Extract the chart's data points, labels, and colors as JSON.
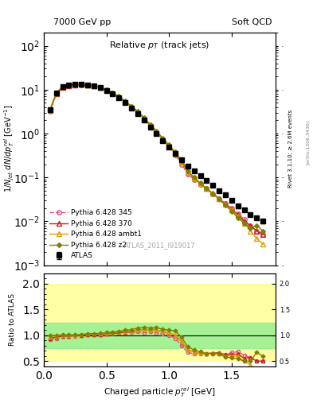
{
  "title_left": "7000 GeV pp",
  "title_right": "Soft QCD",
  "plot_title": "Relative $p_T$ (track jets)",
  "xlabel": "Charged particle $p_{T}^{rel}$ [GeV]",
  "ylabel_main": "$1/N_{jet}$ $dN/dp_T^{rel}$ [GeV$^{-1}$]",
  "ylabel_ratio": "Ratio to ATLAS",
  "right_label": "Rivet 3.1.10; ≥ 2.6M events",
  "watermark": "ATLAS_2011_I919017",
  "ref_label": "[arXiv:1306.3436]",
  "atlas_x": [
    0.05,
    0.1,
    0.15,
    0.2,
    0.25,
    0.3,
    0.35,
    0.4,
    0.45,
    0.5,
    0.55,
    0.6,
    0.65,
    0.7,
    0.75,
    0.8,
    0.85,
    0.9,
    0.95,
    1.0,
    1.05,
    1.1,
    1.15,
    1.2,
    1.25,
    1.3,
    1.35,
    1.4,
    1.45,
    1.5,
    1.55,
    1.6,
    1.65,
    1.7,
    1.75
  ],
  "atlas_y": [
    3.5,
    8.5,
    11.5,
    12.5,
    13.0,
    13.0,
    12.5,
    12.0,
    11.0,
    9.5,
    8.0,
    6.5,
    5.0,
    3.8,
    2.8,
    2.0,
    1.4,
    1.0,
    0.7,
    0.5,
    0.35,
    0.25,
    0.18,
    0.14,
    0.11,
    0.085,
    0.065,
    0.05,
    0.04,
    0.03,
    0.022,
    0.018,
    0.014,
    0.012,
    0.01
  ],
  "atlas_yerr": [
    0.3,
    0.5,
    0.6,
    0.6,
    0.6,
    0.6,
    0.6,
    0.5,
    0.5,
    0.4,
    0.3,
    0.25,
    0.2,
    0.15,
    0.12,
    0.09,
    0.06,
    0.05,
    0.035,
    0.025,
    0.018,
    0.013,
    0.01,
    0.008,
    0.006,
    0.005,
    0.004,
    0.003,
    0.003,
    0.002,
    0.002,
    0.0015,
    0.0012,
    0.001,
    0.001
  ],
  "p345_x": [
    0.05,
    0.1,
    0.15,
    0.2,
    0.25,
    0.3,
    0.35,
    0.4,
    0.45,
    0.5,
    0.55,
    0.6,
    0.65,
    0.7,
    0.75,
    0.8,
    0.85,
    0.9,
    0.95,
    1.0,
    1.05,
    1.1,
    1.15,
    1.2,
    1.25,
    1.3,
    1.35,
    1.4,
    1.45,
    1.5,
    1.55,
    1.6,
    1.65,
    1.7,
    1.75
  ],
  "p345_y": [
    3.2,
    8.0,
    11.2,
    12.2,
    12.8,
    12.9,
    12.6,
    12.1,
    11.2,
    9.8,
    8.3,
    6.8,
    5.3,
    4.0,
    3.0,
    2.1,
    1.5,
    1.05,
    0.72,
    0.5,
    0.33,
    0.2,
    0.12,
    0.09,
    0.07,
    0.055,
    0.042,
    0.033,
    0.025,
    0.02,
    0.015,
    0.011,
    0.008,
    0.006,
    0.005
  ],
  "p370_x": [
    0.05,
    0.1,
    0.15,
    0.2,
    0.25,
    0.3,
    0.35,
    0.4,
    0.45,
    0.5,
    0.55,
    0.6,
    0.65,
    0.7,
    0.75,
    0.8,
    0.85,
    0.9,
    0.95,
    1.0,
    1.05,
    1.1,
    1.15,
    1.2,
    1.25,
    1.3,
    1.35,
    1.4,
    1.45,
    1.5,
    1.55,
    1.6,
    1.65,
    1.7,
    1.75
  ],
  "p370_y": [
    3.3,
    8.2,
    11.3,
    12.3,
    12.9,
    13.0,
    12.7,
    12.2,
    11.2,
    9.8,
    8.3,
    6.8,
    5.3,
    4.1,
    3.1,
    2.2,
    1.55,
    1.1,
    0.75,
    0.52,
    0.35,
    0.22,
    0.13,
    0.095,
    0.072,
    0.055,
    0.043,
    0.033,
    0.025,
    0.019,
    0.014,
    0.01,
    0.008,
    0.006,
    0.005
  ],
  "pambt1_x": [
    0.05,
    0.1,
    0.15,
    0.2,
    0.25,
    0.3,
    0.35,
    0.4,
    0.45,
    0.5,
    0.55,
    0.6,
    0.65,
    0.7,
    0.75,
    0.8,
    0.85,
    0.9,
    0.95,
    1.0,
    1.05,
    1.1,
    1.15,
    1.2,
    1.25,
    1.3,
    1.35,
    1.4,
    1.45,
    1.5,
    1.55,
    1.6,
    1.65,
    1.7,
    1.75
  ],
  "pambt1_y": [
    3.4,
    8.4,
    11.5,
    12.5,
    13.0,
    13.1,
    12.8,
    12.3,
    11.3,
    9.9,
    8.4,
    6.9,
    5.4,
    4.1,
    3.1,
    2.2,
    1.55,
    1.1,
    0.75,
    0.52,
    0.35,
    0.22,
    0.13,
    0.095,
    0.072,
    0.055,
    0.043,
    0.032,
    0.024,
    0.018,
    0.013,
    0.009,
    0.006,
    0.004,
    0.003
  ],
  "pz2_x": [
    0.05,
    0.1,
    0.15,
    0.2,
    0.25,
    0.3,
    0.35,
    0.4,
    0.45,
    0.5,
    0.55,
    0.6,
    0.65,
    0.7,
    0.75,
    0.8,
    0.85,
    0.9,
    0.95,
    1.0,
    1.05,
    1.1,
    1.15,
    1.2,
    1.25,
    1.3,
    1.35,
    1.4,
    1.45,
    1.5,
    1.55,
    1.6,
    1.65,
    1.7,
    1.75
  ],
  "pz2_y": [
    3.5,
    8.5,
    11.6,
    12.6,
    13.1,
    13.2,
    12.9,
    12.4,
    11.4,
    10.0,
    8.5,
    7.0,
    5.5,
    4.2,
    3.2,
    2.3,
    1.6,
    1.15,
    0.78,
    0.55,
    0.38,
    0.24,
    0.14,
    0.1,
    0.075,
    0.055,
    0.042,
    0.032,
    0.023,
    0.017,
    0.012,
    0.009,
    0.007,
    0.008,
    0.006
  ],
  "ylim_main": [
    0.001,
    200
  ],
  "ylim_ratio": [
    0.4,
    2.2
  ],
  "xlim": [
    0.0,
    1.85
  ],
  "color_345": "#e05080",
  "color_370": "#c02020",
  "color_ambt1": "#e0a000",
  "color_z2": "#808000",
  "color_atlas": "black",
  "bg_color_green": "#90ee90",
  "bg_color_yellow": "#ffff80"
}
